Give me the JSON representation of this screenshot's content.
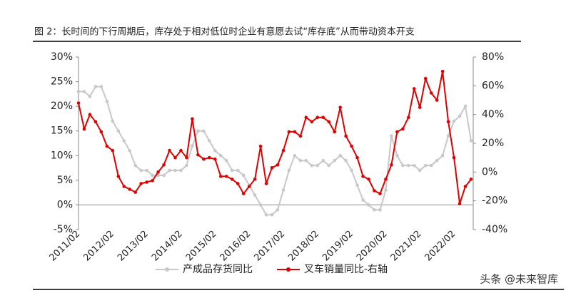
{
  "chart_data": {
    "type": "line",
    "title": "图 2：长时间的下行周期后，库存处于相对低位时企业有意愿去试“库存底”从而带动资本开支",
    "watermark": "头条 @未来智库",
    "legend": "bottom",
    "categories": [
      "2011/02",
      null,
      null,
      null,
      null,
      null,
      "2012/02",
      null,
      null,
      null,
      null,
      null,
      "2013/02",
      null,
      null,
      null,
      null,
      null,
      "2014/02",
      null,
      null,
      null,
      null,
      null,
      "2015/02",
      null,
      null,
      null,
      null,
      null,
      "2016/02",
      null,
      null,
      null,
      null,
      null,
      "2017/02",
      null,
      null,
      null,
      null,
      null,
      "2018/02",
      null,
      null,
      null,
      null,
      null,
      "2019/02",
      null,
      null,
      null,
      null,
      null,
      "2020/02",
      null,
      null,
      null,
      null,
      null,
      "2021/02",
      null,
      null,
      null,
      null,
      null,
      "2022/02",
      null,
      null,
      null
    ],
    "ylim": [
      -5,
      30
    ],
    "yticks": [
      {
        "value": -5,
        "label": "-5%"
      },
      {
        "value": 0,
        "label": "0%"
      },
      {
        "value": 5,
        "label": "5%"
      },
      {
        "value": 10,
        "label": "10%"
      },
      {
        "value": 15,
        "label": "15%"
      },
      {
        "value": 20,
        "label": "20%"
      },
      {
        "value": 25,
        "label": "25%"
      },
      {
        "value": 30,
        "label": "30%"
      }
    ],
    "y2lim": [
      -40,
      80
    ],
    "y2ticks": [
      {
        "value": -40,
        "label": "-40%"
      },
      {
        "value": -20,
        "label": "-20%"
      },
      {
        "value": 0,
        "label": "0%"
      },
      {
        "value": 20,
        "label": "20%"
      },
      {
        "value": 40,
        "label": "40%"
      },
      {
        "value": 60,
        "label": "60%"
      },
      {
        "value": 80,
        "label": "80%"
      }
    ],
    "series": [
      {
        "name": "产成品存货同比",
        "color": "#c8c8c8",
        "axis": "y",
        "values": [
          23,
          23,
          22,
          24,
          24,
          21,
          17,
          15,
          13,
          11,
          8,
          7,
          7,
          6,
          6,
          6,
          7,
          7,
          7,
          8,
          12,
          15,
          15,
          13,
          11,
          10,
          9,
          7,
          7,
          6,
          4,
          2,
          0,
          -2,
          -2,
          -1,
          3,
          7,
          10,
          9,
          9,
          8,
          8,
          9,
          8,
          9,
          10,
          9,
          7,
          4,
          1,
          0,
          -1,
          -1,
          3,
          14,
          10,
          8,
          8,
          8,
          7,
          8,
          8,
          9,
          10,
          14,
          17,
          18,
          20,
          13
        ]
      },
      {
        "name": "叉车销量同比-右轴",
        "color": "#e00000",
        "axis": "y2",
        "values": [
          48,
          30,
          40,
          35,
          28,
          18,
          15,
          -3,
          -10,
          -12,
          -14,
          -8,
          -7,
          -6,
          0,
          5,
          15,
          10,
          15,
          10,
          37,
          12,
          9,
          10,
          9,
          -3,
          -3,
          -5,
          -8,
          -15,
          -10,
          -5,
          18,
          -8,
          3,
          5,
          15,
          28,
          28,
          25,
          38,
          35,
          38,
          38,
          35,
          28,
          45,
          25,
          18,
          10,
          -3,
          -5,
          -13,
          -15,
          -5,
          5,
          28,
          30,
          38,
          58,
          45,
          65,
          55,
          50,
          70,
          35,
          10,
          -22,
          -10,
          -5
        ]
      }
    ]
  }
}
